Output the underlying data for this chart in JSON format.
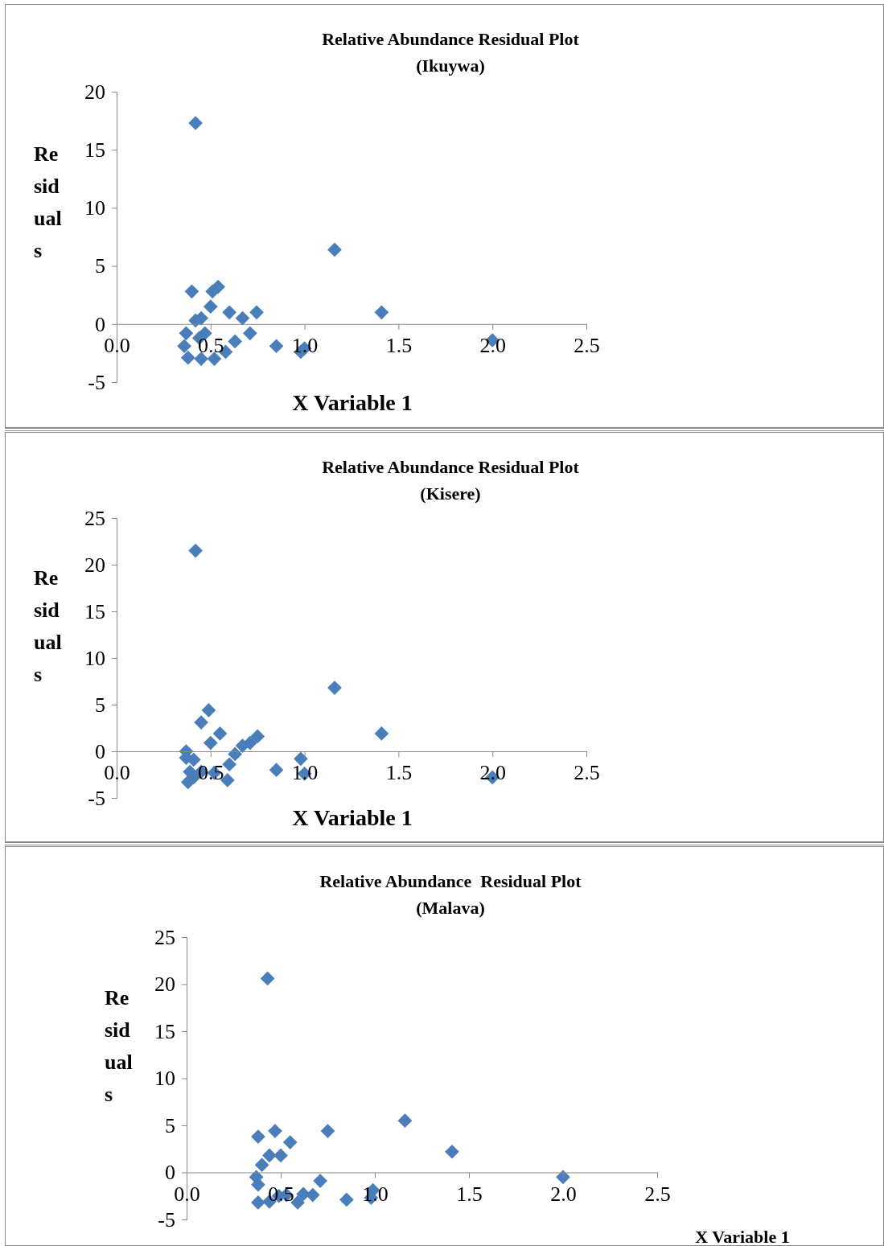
{
  "chart_data": [
    {
      "type": "scatter",
      "title": "Relative Abundance Residual Plot",
      "subtitle": "(Ikuywa)",
      "xlabel": "X Variable 1",
      "ylabel": "Residuals",
      "marker": "diamond",
      "grid": false,
      "xlim": [
        0,
        2.5
      ],
      "xticks": [
        {
          "value": 0,
          "label": "0.0"
        },
        {
          "value": 0.5,
          "label": "0.5"
        },
        {
          "value": 1,
          "label": "1.0"
        },
        {
          "value": 1.5,
          "label": "1.5"
        },
        {
          "value": 2,
          "label": "2.0"
        },
        {
          "value": 2.5,
          "label": "2.5"
        }
      ],
      "ylim": [
        -5,
        20
      ],
      "yticks": [
        -5,
        0,
        5,
        10,
        15,
        20
      ],
      "series": [
        {
          "color": "#4a7ebb",
          "x": [
            0.42,
            0.4,
            0.54,
            0.51,
            0.5,
            0.6,
            0.745,
            0.67,
            0.42,
            0.45,
            0.37,
            0.47,
            0.44,
            0.71,
            0.63,
            0.36,
            0.85,
            0.58,
            1.0,
            0.98,
            0.38,
            0.45,
            0.52,
            1.16,
            1.41,
            2.0
          ],
          "values": [
            17.3,
            2.8,
            3.2,
            2.8,
            1.5,
            1.0,
            1.0,
            0.5,
            0.3,
            0.5,
            -0.8,
            -0.8,
            -1.2,
            -0.8,
            -1.5,
            -1.9,
            -1.9,
            -2.4,
            -2.1,
            -2.4,
            -2.9,
            -3.0,
            -3.0,
            6.4,
            1.0,
            -1.4
          ]
        }
      ]
    },
    {
      "type": "scatter",
      "title": "Relative Abundance Residual Plot",
      "subtitle": "(Kisere)",
      "xlabel": "X Variable 1",
      "ylabel": "Residuals",
      "marker": "diamond",
      "grid": false,
      "xlim": [
        0,
        2.5
      ],
      "xticks": [
        {
          "value": 0,
          "label": "0.0"
        },
        {
          "value": 0.5,
          "label": "0.5"
        },
        {
          "value": 1,
          "label": "1.0"
        },
        {
          "value": 1.5,
          "label": "1.5"
        },
        {
          "value": 2,
          "label": "2.0"
        },
        {
          "value": 2.5,
          "label": "2.5"
        }
      ],
      "ylim": [
        -5,
        25
      ],
      "yticks": [
        -5,
        0,
        5,
        10,
        15,
        20,
        25
      ],
      "series": [
        {
          "color": "#4a7ebb",
          "x": [
            0.42,
            0.49,
            0.45,
            0.55,
            0.5,
            0.37,
            0.37,
            0.41,
            0.75,
            0.71,
            0.67,
            0.63,
            0.6,
            0.85,
            0.98,
            1.0,
            1.16,
            1.41,
            2.0,
            0.39,
            0.45,
            0.52,
            0.59,
            0.38,
            0.41
          ],
          "values": [
            21.5,
            4.4,
            3.1,
            1.9,
            0.9,
            0.0,
            -0.7,
            -0.9,
            1.6,
            0.9,
            0.6,
            -0.3,
            -1.4,
            -2.0,
            -0.8,
            -2.4,
            6.8,
            1.9,
            -2.8,
            -2.2,
            -2.2,
            -2.3,
            -3.1,
            -3.3,
            -2.8
          ]
        }
      ]
    },
    {
      "type": "scatter",
      "title": "Relative Abundance  Residual Plot",
      "subtitle": "(Malava)",
      "xlabel": "X Variable 1",
      "ylabel": "Residuals",
      "marker": "diamond",
      "grid": false,
      "xlim": [
        0,
        2.5
      ],
      "xticks": [
        {
          "value": 0,
          "label": "0.0"
        },
        {
          "value": 0.5,
          "label": "0.5"
        },
        {
          "value": 1,
          "label": "1.0"
        },
        {
          "value": 1.5,
          "label": "1.5"
        },
        {
          "value": 2,
          "label": "2.0"
        },
        {
          "value": 2.5,
          "label": "2.5"
        }
      ],
      "ylim": [
        -5,
        25
      ],
      "yticks": [
        -5,
        0,
        5,
        10,
        15,
        20,
        25
      ],
      "series": [
        {
          "color": "#4a7ebb",
          "x": [
            0.43,
            0.38,
            0.47,
            0.55,
            0.75,
            0.5,
            0.44,
            0.4,
            0.37,
            0.38,
            0.71,
            0.67,
            0.62,
            0.53,
            0.49,
            0.85,
            0.99,
            0.98,
            1.16,
            1.41,
            2.0,
            0.38,
            0.44,
            0.59
          ],
          "values": [
            20.6,
            3.8,
            4.4,
            3.2,
            4.4,
            1.8,
            1.8,
            0.8,
            -0.5,
            -1.3,
            -0.9,
            -2.4,
            -2.3,
            -2.4,
            -2.5,
            -2.9,
            -1.9,
            -2.7,
            5.5,
            2.2,
            -0.5,
            -3.2,
            -3.1,
            -3.2
          ]
        }
      ]
    }
  ]
}
